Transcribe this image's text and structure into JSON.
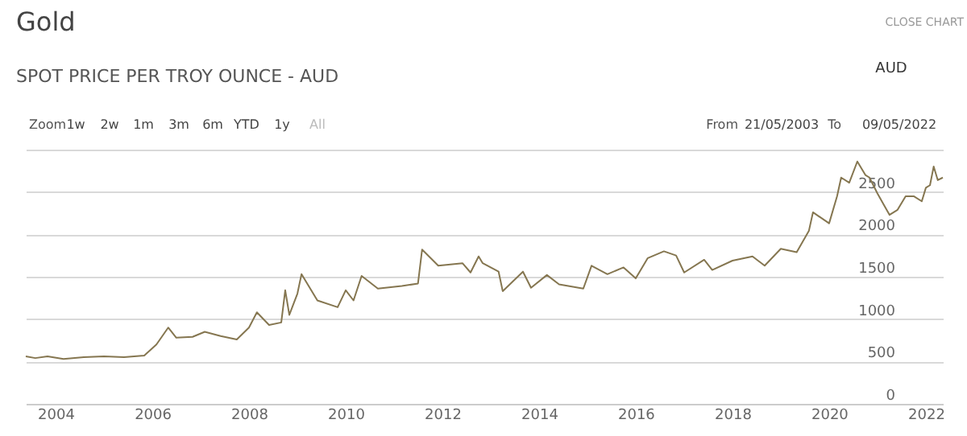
{
  "chart_data": {
    "type": "line",
    "title": "Gold",
    "subtitle": "SPOT PRICE PER TROY OUNCE - AUD",
    "annotations": [
      "CLOSE CHART",
      "AUD",
      "Zoom",
      "1w",
      "2w",
      "1m",
      "3m",
      "6m",
      "YTD",
      "1y",
      "All",
      "From",
      "21/05/2003",
      "To",
      "09/05/2022"
    ],
    "x": [
      "2003-05-21",
      "2003-08",
      "2003-11",
      "2004-03",
      "2004-08",
      "2005-01",
      "2005-06",
      "2005-11",
      "2006-02",
      "2006-05",
      "2006-07",
      "2006-11",
      "2007-02",
      "2007-06",
      "2007-10",
      "2008-01",
      "2008-03",
      "2008-06",
      "2008-09",
      "2008-10",
      "2008-11",
      "2009-01",
      "2009-02",
      "2009-06",
      "2009-11",
      "2010-01",
      "2010-03",
      "2010-05",
      "2010-09",
      "2011-03",
      "2011-07",
      "2011-08",
      "2011-12",
      "2012-06",
      "2012-08",
      "2012-10",
      "2012-11",
      "2013-03",
      "2013-04",
      "2013-09",
      "2013-11",
      "2014-03",
      "2014-06",
      "2014-12",
      "2015-02",
      "2015-06",
      "2015-10",
      "2016-01",
      "2016-04",
      "2016-08",
      "2016-11",
      "2017-01",
      "2017-06",
      "2017-08",
      "2018-01",
      "2018-06",
      "2018-09",
      "2019-01",
      "2019-05",
      "2019-08",
      "2019-09",
      "2020-01",
      "2020-03",
      "2020-04",
      "2020-06",
      "2020-08",
      "2020-10",
      "2020-11",
      "2021-01",
      "2021-04",
      "2021-06",
      "2021-08",
      "2021-10",
      "2021-12",
      "2022-01",
      "2022-02",
      "2022-03",
      "2022-04",
      "2022-05-09"
    ],
    "series": [
      {
        "color": "#857650",
        "values": [
          560,
          540,
          560,
          530,
          550,
          560,
          550,
          570,
          700,
          900,
          780,
          790,
          850,
          800,
          760,
          900,
          1080,
          930,
          960,
          1340,
          1050,
          1300,
          1530,
          1220,
          1140,
          1340,
          1220,
          1510,
          1360,
          1390,
          1420,
          1820,
          1630,
          1660,
          1550,
          1740,
          1660,
          1560,
          1330,
          1560,
          1370,
          1520,
          1410,
          1360,
          1630,
          1530,
          1610,
          1480,
          1720,
          1800,
          1750,
          1550,
          1700,
          1580,
          1690,
          1740,
          1630,
          1830,
          1790,
          2040,
          2260,
          2130,
          2450,
          2670,
          2610,
          2860,
          2700,
          2670,
          2480,
          2230,
          2290,
          2450,
          2450,
          2390,
          2550,
          2580,
          2800,
          2640,
          2670
        ]
      }
    ],
    "xlim": [
      "2003-05-21",
      "2022-05-09"
    ],
    "xticks": [
      "2004",
      "2006",
      "2008",
      "2010",
      "2012",
      "2014",
      "2016",
      "2018",
      "2020",
      "2022"
    ],
    "ylim": [
      0,
      3000
    ],
    "yticks": [
      0,
      500,
      1000,
      1500,
      2000,
      2500,
      {
        "value": 3000,
        "label": null
      }
    ],
    "grid": "y",
    "marker": "none",
    "line_style": "solid"
  }
}
